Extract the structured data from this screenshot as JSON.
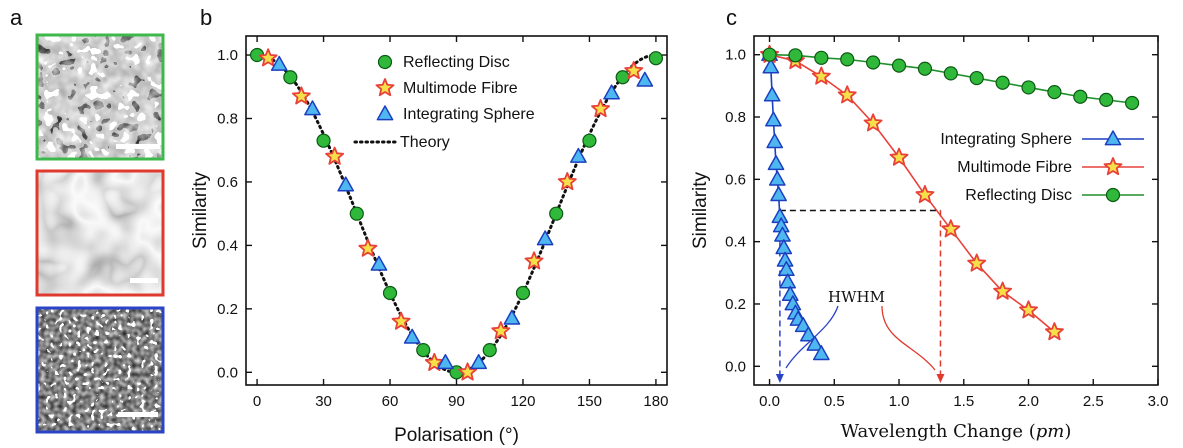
{
  "panel_labels": {
    "a": "a",
    "b": "b",
    "c": "c"
  },
  "images": [
    {
      "border_color": "#3cb94a",
      "scale_bar": true,
      "pattern": "fine-speckle"
    },
    {
      "border_color": "#e03a2e",
      "scale_bar": true,
      "pattern": "coarse-worm"
    },
    {
      "border_color": "#2a44c8",
      "scale_bar": true,
      "pattern": "very-fine-speckle"
    }
  ],
  "chart_data": [
    {
      "type": "scatter",
      "panel": "b",
      "xlabel": "Polarisation (°)",
      "ylabel": "Similarity",
      "xlim": [
        -5,
        185
      ],
      "ylim": [
        -0.04,
        1.06
      ],
      "xticks": [
        0,
        30,
        60,
        90,
        120,
        150,
        180
      ],
      "yticks": [
        0.0,
        0.2,
        0.4,
        0.6,
        0.8,
        1.0
      ],
      "ytick_labels": [
        "0.0",
        "0.2",
        "0.4",
        "0.6",
        "0.8",
        "1.0"
      ],
      "legend": [
        "Reflecting Disc",
        "Multimode Fibre",
        "Integrating Sphere",
        "Theory"
      ],
      "legend_position": "top-center",
      "series": [
        {
          "name": "Reflecting Disc",
          "marker": "circle",
          "color": "#2fb83a",
          "x": [
            0,
            15,
            30,
            45,
            60,
            75,
            90,
            105,
            120,
            135,
            150,
            165,
            180
          ],
          "y": [
            1.0,
            0.93,
            0.73,
            0.5,
            0.25,
            0.07,
            0.0,
            0.07,
            0.25,
            0.5,
            0.73,
            0.93,
            0.99
          ]
        },
        {
          "name": "Multimode Fibre",
          "marker": "star",
          "color": "#e8413a",
          "x": [
            5,
            20,
            35,
            50,
            65,
            80,
            95,
            110,
            125,
            140,
            155,
            170
          ],
          "y": [
            0.99,
            0.87,
            0.68,
            0.39,
            0.16,
            0.03,
            0.0,
            0.13,
            0.35,
            0.6,
            0.83,
            0.95
          ]
        },
        {
          "name": "Integrating Sphere",
          "marker": "triangle",
          "color": "#2e6fe0",
          "x": [
            10,
            25,
            40,
            55,
            70,
            85,
            100,
            115,
            130,
            145,
            160,
            175
          ],
          "y": [
            0.97,
            0.83,
            0.59,
            0.34,
            0.11,
            0.03,
            0.03,
            0.17,
            0.42,
            0.68,
            0.88,
            0.92
          ]
        },
        {
          "name": "Theory",
          "line": "dotted",
          "function": "cos^2(x)"
        }
      ]
    },
    {
      "type": "line",
      "panel": "c",
      "xlabel": "Wavelength Change (pm)",
      "xlabel_main": "Wavelength Change (",
      "xlabel_unit": "pm",
      "xlabel_close": ")",
      "ylabel": "Similarity",
      "xlim": [
        -0.12,
        3.0
      ],
      "ylim": [
        -0.06,
        1.06
      ],
      "xticks": [
        0.0,
        0.5,
        1.0,
        1.5,
        2.0,
        2.5,
        3.0
      ],
      "xtick_labels": [
        "0.0",
        "0.5",
        "1.0",
        "1.5",
        "2.0",
        "2.5",
        "3.0"
      ],
      "yticks": [
        0.0,
        0.2,
        0.4,
        0.6,
        0.8,
        1.0
      ],
      "ytick_labels": [
        "0.0",
        "0.2",
        "0.4",
        "0.6",
        "0.8",
        "1.0"
      ],
      "legend": [
        "Integrating Sphere",
        "Multimode Fibre",
        "Reflecting Disc"
      ],
      "legend_position": "right",
      "annotation": "HWHM",
      "half_max": 0.5,
      "hwhm_x": [
        0.08,
        1.32
      ],
      "series": [
        {
          "name": "Integrating Sphere",
          "marker": "triangle",
          "color": "#2e6fe0",
          "x": [
            0.0,
            0.01,
            0.02,
            0.03,
            0.04,
            0.05,
            0.06,
            0.07,
            0.08,
            0.09,
            0.1,
            0.11,
            0.12,
            0.13,
            0.14,
            0.16,
            0.18,
            0.2,
            0.22,
            0.26,
            0.3,
            0.35,
            0.4
          ],
          "y": [
            1.0,
            0.96,
            0.87,
            0.79,
            0.72,
            0.65,
            0.6,
            0.55,
            0.48,
            0.45,
            0.42,
            0.38,
            0.34,
            0.31,
            0.27,
            0.23,
            0.2,
            0.17,
            0.15,
            0.13,
            0.1,
            0.07,
            0.04
          ]
        },
        {
          "name": "Multimode Fibre",
          "marker": "star",
          "color": "#e8413a",
          "x": [
            0.0,
            0.2,
            0.4,
            0.6,
            0.8,
            1.0,
            1.2,
            1.4,
            1.6,
            1.8,
            2.0,
            2.2
          ],
          "y": [
            1.0,
            0.98,
            0.93,
            0.87,
            0.78,
            0.67,
            0.55,
            0.44,
            0.33,
            0.24,
            0.18,
            0.11
          ]
        },
        {
          "name": "Reflecting Disc",
          "marker": "circle",
          "color": "#2fb83a",
          "x": [
            0.0,
            0.2,
            0.4,
            0.6,
            0.8,
            1.0,
            1.2,
            1.4,
            1.6,
            1.8,
            2.0,
            2.2,
            2.4,
            2.6,
            2.8
          ],
          "y": [
            1.0,
            0.998,
            0.99,
            0.985,
            0.975,
            0.965,
            0.955,
            0.94,
            0.925,
            0.91,
            0.895,
            0.88,
            0.865,
            0.855,
            0.845
          ]
        }
      ]
    }
  ]
}
